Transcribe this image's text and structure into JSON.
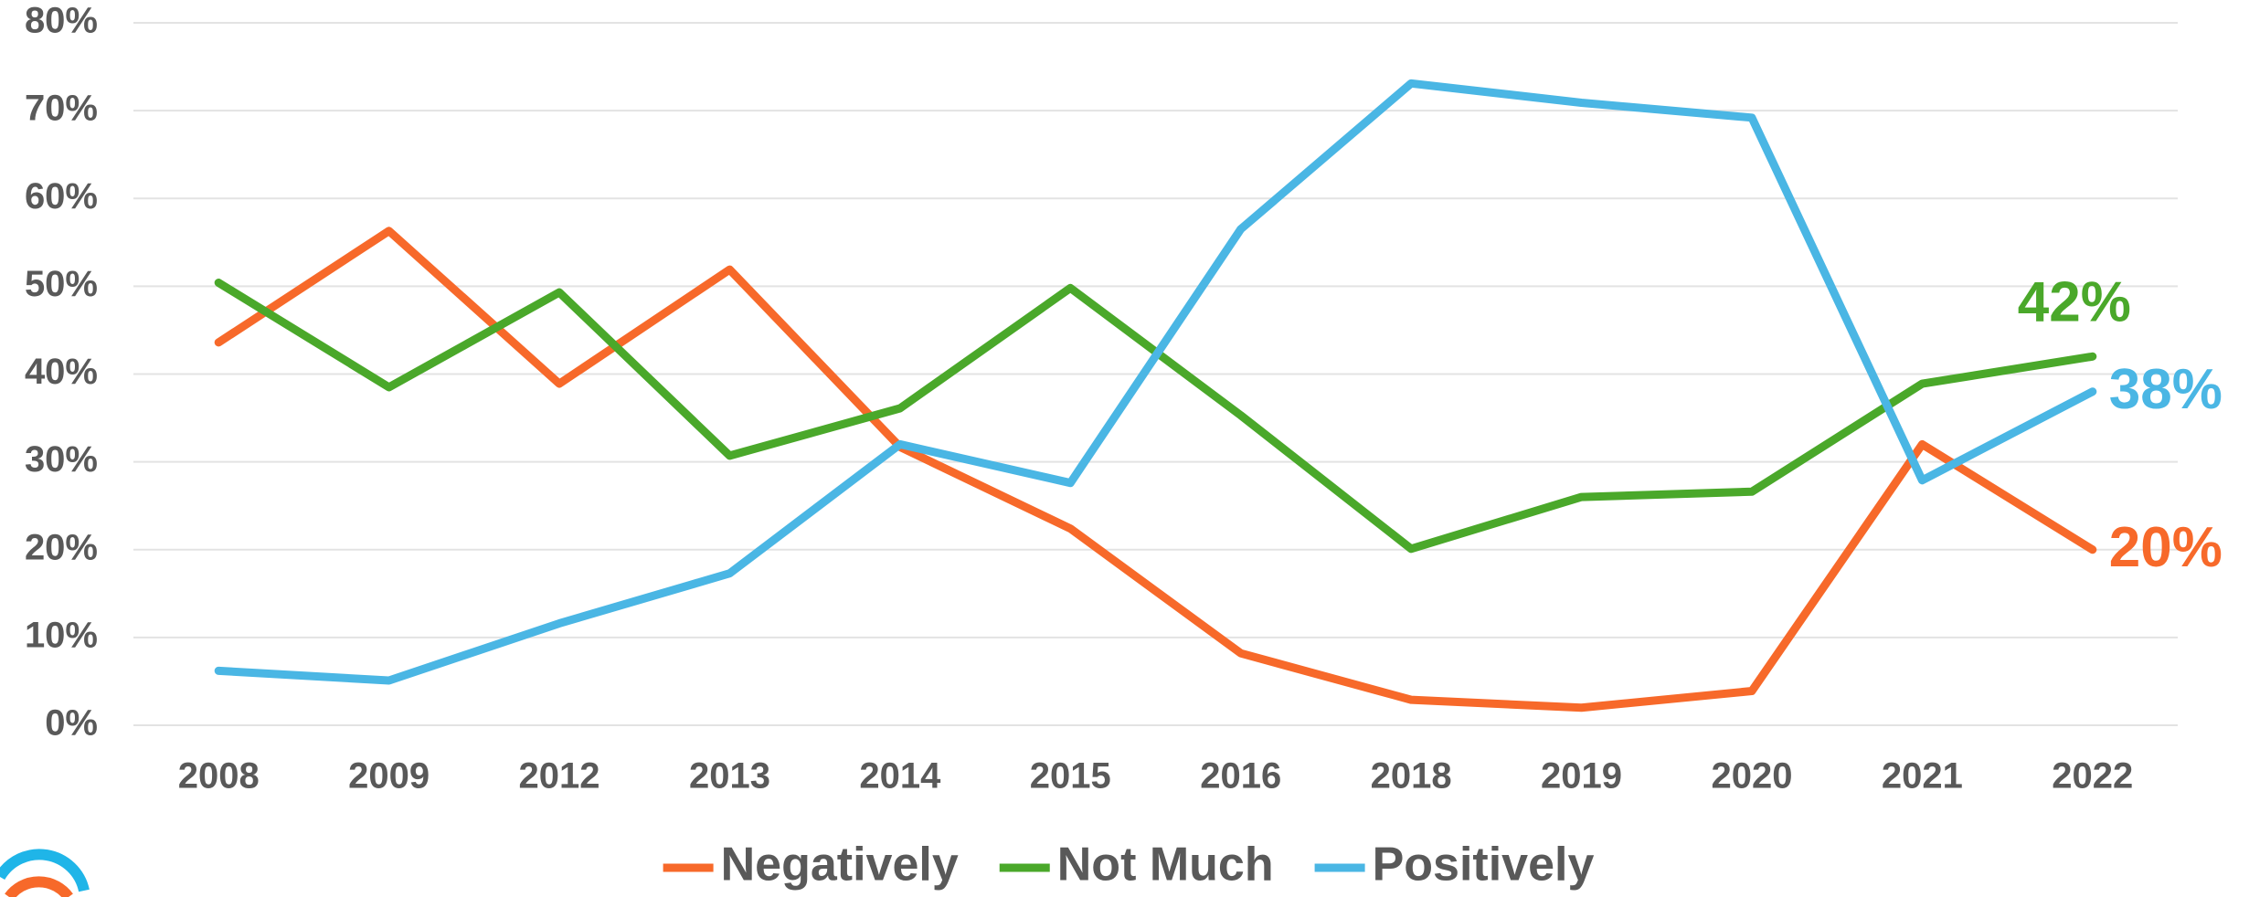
{
  "chart_data": {
    "type": "line",
    "categories": [
      "2008",
      "2009",
      "2012",
      "2013",
      "2014",
      "2015",
      "2016",
      "2018",
      "2019",
      "2020",
      "2021",
      "2022"
    ],
    "series": [
      {
        "name": "Negatively",
        "color": "#f7692a",
        "values": [
          43.6,
          56.3,
          38.9,
          51.9,
          31.7,
          22.4,
          8.2,
          2.9,
          2,
          3.9,
          32,
          20
        ],
        "value_labels": [
          null,
          null,
          null,
          null,
          null,
          null,
          null,
          null,
          null,
          null,
          null,
          "20%"
        ]
      },
      {
        "name": "Not Much",
        "color": "#4aa82a",
        "values": [
          50.4,
          38.5,
          49.3,
          30.7,
          36.1,
          49.8,
          35.3,
          20.1,
          26,
          26.6,
          38.9,
          42
        ],
        "value_labels": [
          null,
          null,
          null,
          null,
          null,
          null,
          null,
          null,
          null,
          null,
          null,
          "42%"
        ]
      },
      {
        "name": "Positively",
        "color": "#4ab6e4",
        "values": [
          6.2,
          5.1,
          11.6,
          17.3,
          32,
          27.6,
          56.5,
          73.1,
          70.9,
          69.2,
          27.9,
          38
        ],
        "value_labels": [
          null,
          null,
          null,
          null,
          null,
          null,
          null,
          null,
          null,
          null,
          null,
          "38%"
        ]
      }
    ],
    "ylim": [
      0,
      80
    ],
    "yticks": [
      {
        "value": 0,
        "label": "0%"
      },
      {
        "value": 10,
        "label": "10%"
      },
      {
        "value": 20,
        "label": "20%"
      },
      {
        "value": 30,
        "label": "30%"
      },
      {
        "value": 40,
        "label": "40%"
      },
      {
        "value": 50,
        "label": "50%"
      },
      {
        "value": 60,
        "label": "60%"
      },
      {
        "value": 70,
        "label": "70%"
      },
      {
        "value": 80,
        "label": "80%"
      }
    ],
    "grid": true,
    "legend": "bottom"
  }
}
